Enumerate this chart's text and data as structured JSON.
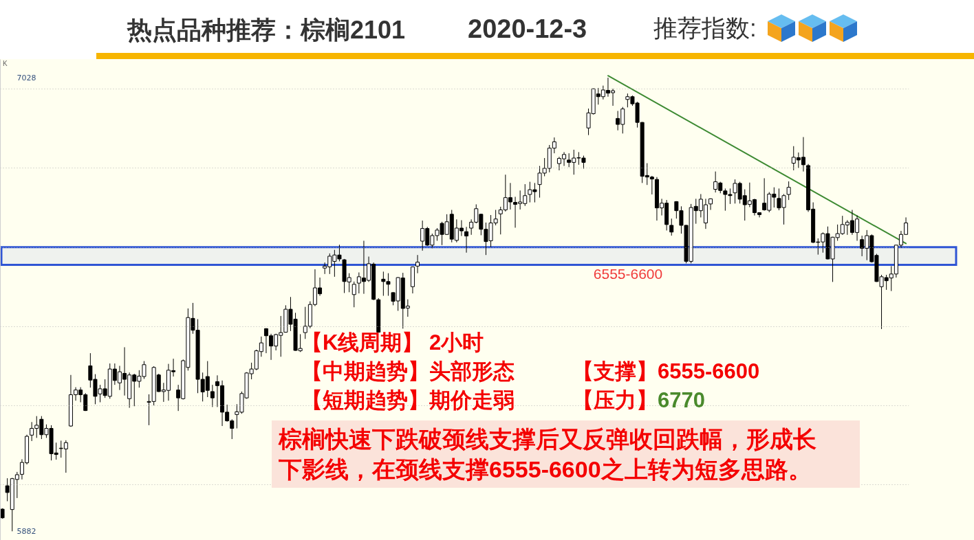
{
  "chart_data": {
    "type": "candlestick",
    "title": "热点品种推荐：棕榈2101",
    "subtitle": "2020-12-3",
    "annotations": [
      "K",
      "推荐指数:",
      "【K线周期】 2小时",
      "【中期趋势】头部形态",
      "【支撑】6555-6600",
      "【短期趋势】期价走弱",
      "【压力】",
      "6770",
      "棕榈快速下跌破颈线支撑后又反弹收回跌幅，形成长下影线，在颈线支撑6555-6600之上转为短多思路。"
    ],
    "categories": [
      null,
      null,
      null,
      null,
      null,
      null,
      null,
      null,
      null,
      null,
      null,
      null,
      null,
      null,
      null,
      null,
      null,
      null,
      null,
      null,
      null,
      null,
      null,
      null,
      null,
      null,
      null,
      null,
      null,
      null,
      null,
      null,
      null,
      null,
      null,
      null,
      null,
      null,
      null,
      null,
      null,
      null,
      null,
      null,
      null,
      null,
      null,
      null,
      null,
      null,
      null,
      null,
      null,
      null,
      null,
      null,
      null,
      null,
      null,
      null,
      null,
      null,
      null,
      null,
      null,
      null,
      null,
      null,
      null,
      null,
      null,
      null,
      null,
      null,
      null,
      null,
      null,
      null,
      null,
      null,
      null,
      null,
      null,
      null,
      null,
      null,
      null,
      null,
      null,
      null,
      null,
      null,
      null,
      null,
      null,
      null,
      null,
      null,
      null,
      null,
      null,
      null,
      null,
      null,
      null,
      null,
      null,
      null,
      null,
      null,
      null,
      null,
      null,
      null,
      null,
      null,
      null,
      null,
      null,
      null,
      null,
      null,
      null,
      null,
      null,
      null,
      null,
      null,
      null,
      null,
      null,
      null,
      null,
      null,
      null,
      null,
      null,
      null,
      null,
      null,
      null,
      null,
      null,
      null,
      null,
      null,
      null,
      null,
      null,
      null,
      null,
      null,
      null,
      null,
      null,
      null,
      null,
      null,
      null,
      null,
      null,
      null,
      null,
      null,
      null,
      null,
      null,
      null,
      null,
      null,
      null,
      null,
      null,
      null,
      null,
      null,
      null,
      null,
      null,
      null,
      null,
      null,
      null,
      null,
      null,
      null
    ],
    "ohlc": [
      [
        5938,
        5940,
        5914,
        5916
      ],
      [
        5997,
        6016,
        5958,
        5980
      ],
      [
        5937,
        6017,
        5882,
        6015
      ],
      [
        6013,
        6032,
        5966,
        6025
      ],
      [
        6026,
        6064,
        6013,
        6056
      ],
      [
        6055,
        6126,
        6051,
        6122
      ],
      [
        6125,
        6158,
        6110,
        6142
      ],
      [
        6142,
        6173,
        6118,
        6150
      ],
      [
        6165,
        6173,
        6115,
        6126
      ],
      [
        6126,
        6152,
        6118,
        6142
      ],
      [
        6142,
        6150,
        6061,
        6078
      ],
      [
        6080,
        6106,
        6063,
        6076
      ],
      [
        6091,
        6111,
        6068,
        6092
      ],
      [
        6090,
        6112,
        6030,
        6106
      ],
      [
        6148,
        6277,
        6146,
        6227
      ],
      [
        6227,
        6246,
        6212,
        6239
      ],
      [
        6239,
        6246,
        6208,
        6227
      ],
      [
        6227,
        6231,
        6186,
        6187
      ],
      [
        6300,
        6332,
        6245,
        6264
      ],
      [
        6266,
        6279,
        6203,
        6223
      ],
      [
        6229,
        6252,
        6208,
        6242
      ],
      [
        6242,
        6266,
        6219,
        6225
      ],
      [
        6223,
        6306,
        6217,
        6292
      ],
      [
        6292,
        6306,
        6252,
        6263
      ],
      [
        6257,
        6300,
        6239,
        6285
      ],
      [
        6281,
        6347,
        6225,
        6266
      ],
      [
        6217,
        6283,
        6194,
        6277
      ],
      [
        6277,
        6280,
        6198,
        6261
      ],
      [
        6261,
        6289,
        6245,
        6274
      ],
      [
        6273,
        6312,
        6267,
        6303
      ],
      [
        6208,
        6228,
        6150,
        6210
      ],
      [
        6210,
        6299,
        6200,
        6296
      ],
      [
        6277,
        6280,
        6234,
        6235
      ],
      [
        6235,
        6257,
        6209,
        6239
      ],
      [
        6238,
        6305,
        6212,
        6289
      ],
      [
        6288,
        6318,
        6273,
        6285
      ],
      [
        6239,
        6252,
        6186,
        6219
      ],
      [
        6217,
        6316,
        6215,
        6313
      ],
      [
        6296,
        6445,
        6288,
        6422
      ],
      [
        6420,
        6459,
        6381,
        6390
      ],
      [
        6390,
        6418,
        6231,
        6266
      ],
      [
        6266,
        6283,
        6210,
        6234
      ],
      [
        6273,
        6312,
        6221,
        6238
      ],
      [
        6235,
        6252,
        6196,
        6219
      ],
      [
        6260,
        6276,
        6196,
        6250
      ],
      [
        6250,
        6263,
        6148,
        6183
      ],
      [
        6183,
        6202,
        6159,
        6161
      ],
      [
        6161,
        6165,
        6115,
        6142
      ],
      [
        6177,
        6203,
        6142,
        6184
      ],
      [
        6183,
        6235,
        6179,
        6230
      ],
      [
        6219,
        6284,
        6217,
        6282
      ],
      [
        6280,
        6308,
        6266,
        6292
      ],
      [
        6292,
        6341,
        6289,
        6338
      ],
      [
        6336,
        6374,
        6323,
        6358
      ],
      [
        6394,
        6395,
        6332,
        6376
      ],
      [
        6376,
        6381,
        6315,
        6350
      ],
      [
        6350,
        6381,
        6339,
        6379
      ],
      [
        6377,
        6426,
        6323,
        6384
      ],
      [
        6385,
        6453,
        6384,
        6443
      ],
      [
        6443,
        6474,
        6388,
        6405
      ],
      [
        6418,
        6434,
        6338,
        6339
      ],
      [
        6338,
        6380,
        6335,
        6344
      ],
      [
        6384,
        6449,
        6368,
        6400
      ],
      [
        6400,
        6463,
        6395,
        6455
      ],
      [
        6455,
        6544,
        6451,
        6497
      ],
      [
        6497,
        6523,
        6477,
        6482
      ],
      [
        6547,
        6561,
        6532,
        6552
      ],
      [
        6550,
        6584,
        6532,
        6577
      ],
      [
        6564,
        6593,
        6525,
        6580
      ],
      [
        6580,
        6606,
        6564,
        6570
      ],
      [
        6568,
        6570,
        6484,
        6513
      ],
      [
        6512,
        6534,
        6486,
        6523
      ],
      [
        6480,
        6513,
        6448,
        6506
      ],
      [
        6509,
        6536,
        6483,
        6525
      ],
      [
        6522,
        6616,
        6482,
        6513
      ],
      [
        6516,
        6576,
        6512,
        6558
      ],
      [
        6557,
        6561,
        6466,
        6468
      ],
      [
        6467,
        6471,
        6384,
        6385
      ],
      [
        6519,
        6538,
        6477,
        6513
      ],
      [
        6513,
        6534,
        6477,
        6506
      ],
      [
        6485,
        6486,
        6453,
        6463
      ],
      [
        6464,
        6524,
        6439,
        6523
      ],
      [
        6522,
        6535,
        6394,
        6445
      ],
      [
        6446,
        6468,
        6424,
        6451
      ],
      [
        6500,
        6551,
        6483,
        6550
      ],
      [
        6552,
        6580,
        6534,
        6562
      ],
      [
        6615,
        6667,
        6591,
        6647
      ],
      [
        6647,
        6651,
        6603,
        6605
      ],
      [
        6605,
        6634,
        6597,
        6629
      ],
      [
        6629,
        6648,
        6616,
        6643
      ],
      [
        6660,
        6664,
        6605,
        6632
      ],
      [
        6632,
        6683,
        6631,
        6664
      ],
      [
        6683,
        6694,
        6612,
        6620
      ],
      [
        6617,
        6670,
        6612,
        6648
      ],
      [
        6648,
        6668,
        6628,
        6641
      ],
      [
        6639,
        6651,
        6586,
        6628
      ],
      [
        6648,
        6670,
        6631,
        6663
      ],
      [
        6663,
        6708,
        6660,
        6697
      ],
      [
        6683,
        6684,
        6630,
        6645
      ],
      [
        6645,
        6662,
        6580,
        6614
      ],
      [
        6616,
        6681,
        6600,
        6661
      ],
      [
        6661,
        6694,
        6655,
        6671
      ],
      [
        6684,
        6702,
        6632,
        6694
      ],
      [
        6694,
        6783,
        6690,
        6725
      ],
      [
        6725,
        6762,
        6695,
        6714
      ],
      [
        6713,
        6727,
        6649,
        6708
      ],
      [
        6710,
        6743,
        6695,
        6714
      ],
      [
        6710,
        6759,
        6704,
        6730
      ],
      [
        6733,
        6765,
        6713,
        6745
      ],
      [
        6745,
        6762,
        6713,
        6740
      ],
      [
        6758,
        6805,
        6725,
        6787
      ],
      [
        6787,
        6825,
        6779,
        6799
      ],
      [
        6799,
        6858,
        6789,
        6850
      ],
      [
        6850,
        6877,
        6837,
        6866
      ],
      [
        6811,
        6828,
        6794,
        6824
      ],
      [
        6823,
        6840,
        6805,
        6834
      ],
      [
        6820,
        6837,
        6802,
        6814
      ],
      [
        6814,
        6846,
        6783,
        6825
      ],
      [
        6825,
        6840,
        6808,
        6826
      ],
      [
        6825,
        6831,
        6798,
        6814
      ],
      [
        6901,
        6950,
        6883,
        6939
      ],
      [
        6937,
        7000,
        6935,
        7000
      ],
      [
        6987,
        7002,
        6960,
        6980
      ],
      [
        6980,
        7008,
        6973,
        6997
      ],
      [
        6996,
        7028,
        6980,
        6989
      ],
      [
        6990,
        7000,
        6957,
        6995
      ],
      [
        6925,
        6944,
        6895,
        6910
      ],
      [
        6910,
        6954,
        6887,
        6949
      ],
      [
        6973,
        6988,
        6953,
        6980
      ],
      [
        6980,
        6983,
        6957,
        6962
      ],
      [
        6964,
        6967,
        6902,
        6915
      ],
      [
        6915,
        6916,
        6762,
        6779
      ],
      [
        6781,
        6812,
        6757,
        6777
      ],
      [
        6777,
        6780,
        6733,
        6772
      ],
      [
        6771,
        6777,
        6667,
        6699
      ],
      [
        6699,
        6722,
        6680,
        6711
      ],
      [
        6711,
        6719,
        6642,
        6657
      ],
      [
        6655,
        6672,
        6629,
        6638
      ],
      [
        6715,
        6716,
        6672,
        6692
      ],
      [
        6692,
        6703,
        6634,
        6655
      ],
      [
        6655,
        6656,
        6559,
        6564
      ],
      [
        6564,
        6709,
        6559,
        6700
      ],
      [
        6703,
        6722,
        6659,
        6692
      ],
      [
        6692,
        6734,
        6675,
        6721
      ],
      [
        6661,
        6722,
        6646,
        6707
      ],
      [
        6709,
        6723,
        6694,
        6722
      ],
      [
        6746,
        6791,
        6738,
        6765
      ],
      [
        6762,
        6765,
        6736,
        6743
      ],
      [
        6742,
        6748,
        6692,
        6733
      ],
      [
        6733,
        6748,
        6709,
        6730
      ],
      [
        6737,
        6771,
        6710,
        6761
      ],
      [
        6761,
        6765,
        6710,
        6721
      ],
      [
        6730,
        6746,
        6667,
        6707
      ],
      [
        6708,
        6763,
        6701,
        6717
      ],
      [
        6720,
        6722,
        6680,
        6687
      ],
      [
        6687,
        6688,
        6675,
        6682
      ],
      [
        6711,
        6774,
        6692,
        6694
      ],
      [
        6693,
        6739,
        6688,
        6734
      ],
      [
        6734,
        6751,
        6700,
        6726
      ],
      [
        6723,
        6748,
        6693,
        6699
      ],
      [
        6700,
        6734,
        6657,
        6730
      ],
      [
        6733,
        6766,
        6719,
        6751
      ],
      [
        6812,
        6855,
        6794,
        6827
      ],
      [
        6826,
        6839,
        6800,
        6820
      ],
      [
        6827,
        6878,
        6791,
        6808
      ],
      [
        6806,
        6810,
        6689,
        6694
      ],
      [
        6696,
        6713,
        6610,
        6612
      ],
      [
        6613,
        6622,
        6581,
        6612
      ],
      [
        6613,
        6637,
        6586,
        6634
      ],
      [
        6634,
        6652,
        6569,
        6570
      ],
      [
        6570,
        6626,
        6512,
        6625
      ],
      [
        6624,
        6657,
        6616,
        6634
      ],
      [
        6634,
        6679,
        6631,
        6657
      ],
      [
        6656,
        6668,
        6631,
        6663
      ],
      [
        6667,
        6694,
        6631,
        6637
      ],
      [
        6637,
        6680,
        6616,
        6671
      ],
      [
        6619,
        6629,
        6577,
        6597
      ],
      [
        6597,
        6643,
        6567,
        6629
      ],
      [
        6629,
        6632,
        6561,
        6563
      ],
      [
        6579,
        6583,
        6512,
        6513
      ],
      [
        6500,
        6530,
        6393,
        6525
      ],
      [
        6523,
        6530,
        6492,
        6515
      ],
      [
        6522,
        6552,
        6489,
        6532
      ],
      [
        6532,
        6605,
        6523,
        6605
      ],
      [
        6605,
        6641,
        6598,
        6632
      ],
      [
        6632,
        6675,
        6631,
        6661
      ]
    ],
    "series": [
      {
        "type": "line",
        "color": "#3d8a32",
        "values": [
          null,
          null,
          null,
          null,
          null,
          null,
          null,
          null,
          null,
          null,
          null,
          null,
          null,
          null,
          null,
          null,
          null,
          null,
          null,
          null,
          null,
          null,
          null,
          null,
          null,
          null,
          null,
          null,
          null,
          null,
          null,
          null,
          null,
          null,
          null,
          null,
          null,
          null,
          null,
          null,
          null,
          null,
          null,
          null,
          null,
          null,
          null,
          null,
          null,
          null,
          null,
          null,
          null,
          null,
          null,
          null,
          null,
          null,
          null,
          null,
          null,
          null,
          null,
          null,
          null,
          null,
          null,
          null,
          null,
          null,
          null,
          null,
          null,
          null,
          null,
          null,
          null,
          null,
          null,
          null,
          null,
          null,
          null,
          null,
          null,
          null,
          null,
          null,
          null,
          null,
          null,
          null,
          null,
          null,
          null,
          null,
          null,
          null,
          null,
          null,
          null,
          null,
          null,
          null,
          null,
          null,
          null,
          null,
          null,
          null,
          null,
          null,
          null,
          null,
          null,
          null,
          null,
          null,
          null,
          null,
          null,
          null,
          null,
          null,
          7033,
          null,
          null,
          null,
          null,
          null,
          null,
          null,
          null,
          null,
          null,
          null,
          null,
          null,
          null,
          null,
          null,
          null,
          null,
          null,
          null,
          null,
          null,
          null,
          null,
          null,
          null,
          null,
          null,
          null,
          null,
          null,
          null,
          null,
          null,
          null,
          null,
          null,
          null,
          null,
          null,
          null,
          null,
          null,
          null,
          null,
          null,
          null,
          null,
          null,
          null,
          null,
          null,
          null,
          null,
          null,
          null,
          null,
          null,
          null,
          null,
          6609
        ]
      }
    ],
    "bands": [
      {
        "axis": "y",
        "from": 6555,
        "to": 6600,
        "label": "6555-6600",
        "color": "#2f55d4"
      }
    ],
    "ylim": [
      5860,
      7075
    ],
    "yticks": [
      5882,
      {
        "value": 6000,
        "label": null
      },
      {
        "value": 6200,
        "label": null
      },
      {
        "value": 6400,
        "label": null
      },
      {
        "value": 6600,
        "label": null
      },
      {
        "value": 6800,
        "label": null
      },
      {
        "value": 7000,
        "label": null
      },
      7028
    ],
    "grid": "y",
    "tick_labels": "y"
  }
}
